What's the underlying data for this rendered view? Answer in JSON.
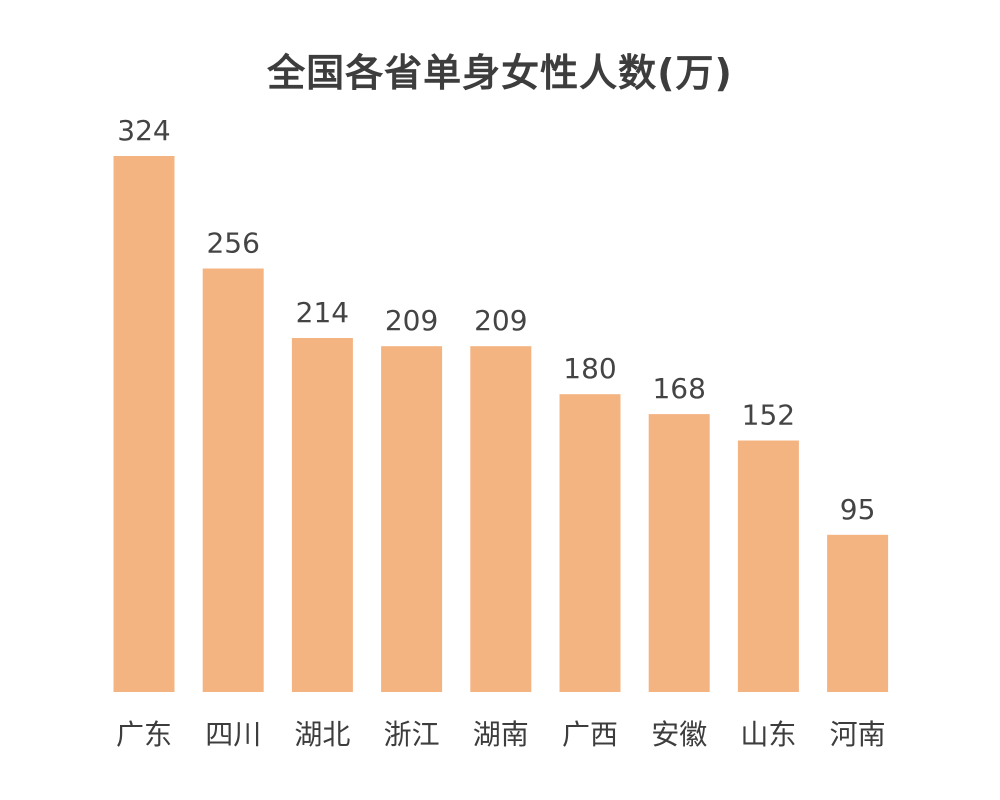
{
  "chart_data": {
    "type": "bar",
    "title": "全国各省单身女性人数(万)",
    "categories": [
      "广东",
      "四川",
      "湖北",
      "浙江",
      "湖南",
      "广西",
      "安徽",
      "山东",
      "河南"
    ],
    "values": [
      324,
      256,
      214,
      209,
      209,
      180,
      168,
      152,
      95
    ],
    "xlabel": "",
    "ylabel": "",
    "ylim": [
      0,
      324
    ],
    "grid": false,
    "legend": "none",
    "bar_color": "#f4b482"
  }
}
